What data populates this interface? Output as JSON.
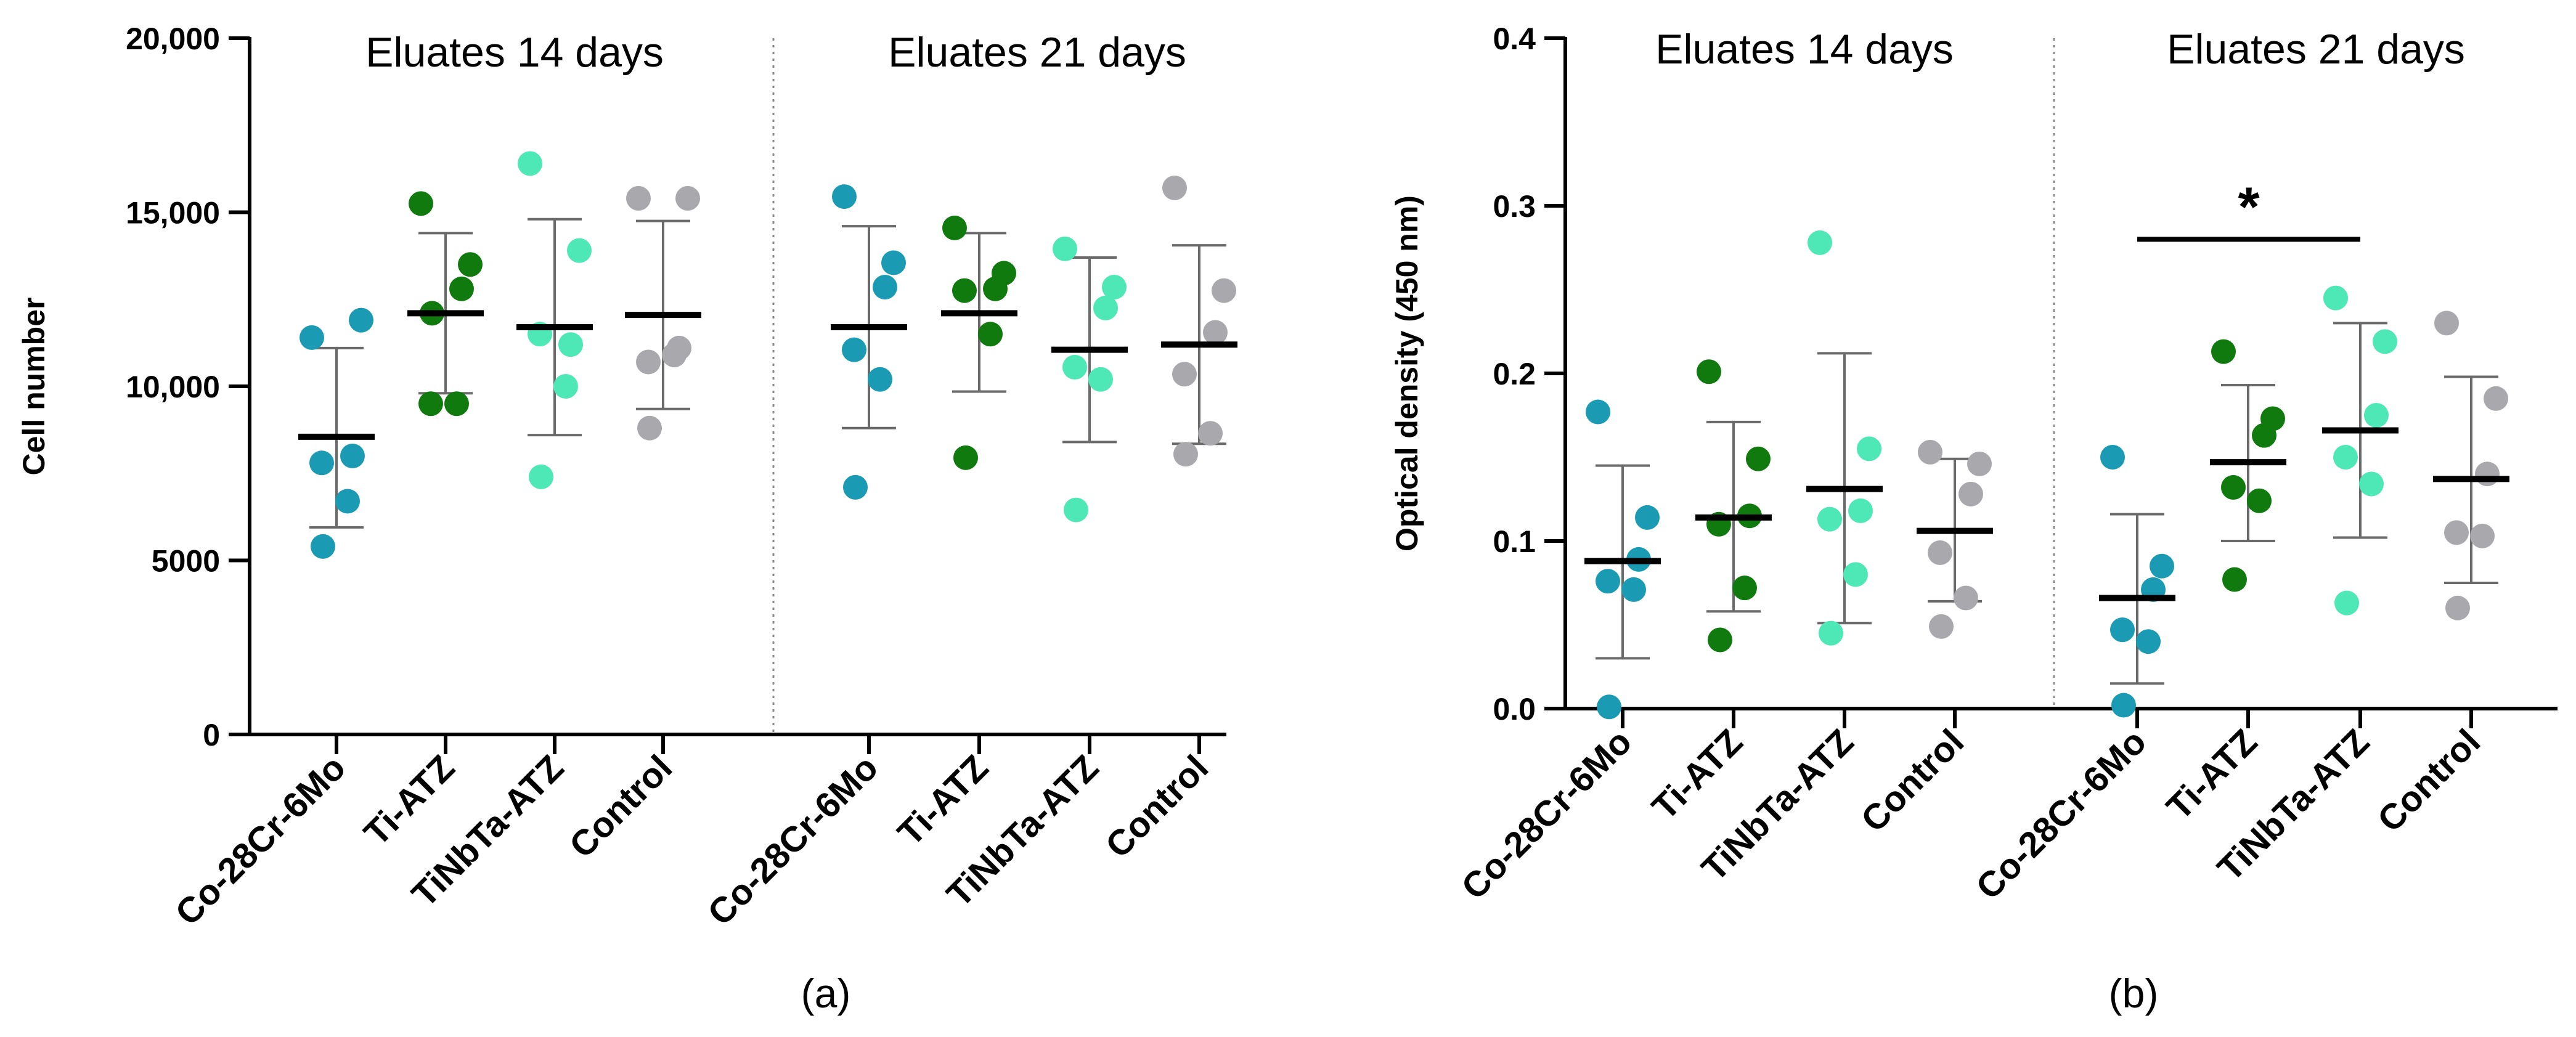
{
  "chart_data": [
    {
      "type": "scatter",
      "panel_label": "(a)",
      "ylabel": "Cell number",
      "ylim": [
        0,
        20000
      ],
      "yticks": [
        {
          "value": 0,
          "label": "0"
        },
        {
          "value": 5000,
          "label": "5000"
        },
        {
          "value": 10000,
          "label": "10,000"
        },
        {
          "value": 15000,
          "label": "15,000"
        },
        {
          "value": 20000,
          "label": "20,000"
        }
      ],
      "groups": [
        {
          "title": "Eluates 14 days",
          "categories": [
            {
              "name": "Co-28Cr-6Mo",
              "color": "#1a9bb3",
              "points": [
                11400,
                11900,
                8000,
                7800,
                6700,
                5400
              ],
              "mean": 8550,
              "sd": [
                5950,
                11100
              ]
            },
            {
              "name": "Ti-ATZ",
              "color": "#117a0f",
              "points": [
                15250,
                13500,
                12800,
                9500,
                9500,
                12100
              ],
              "mean": 12100,
              "sd": [
                9800,
                14400
              ]
            },
            {
              "name": "TiNbTa-ATZ",
              "color": "#4de8b5",
              "points": [
                16400,
                13900,
                11200,
                11500,
                10000,
                7400
              ],
              "mean": 11700,
              "sd": [
                8600,
                14800
              ]
            },
            {
              "name": "Control",
              "color": "#a9a9ad",
              "points": [
                15400,
                15400,
                11100,
                10700,
                10900,
                8800
              ],
              "mean": 12050,
              "sd": [
                9350,
                14750
              ]
            }
          ]
        },
        {
          "title": "Eluates 21 days",
          "categories": [
            {
              "name": "Co-28Cr-6Mo",
              "color": "#1a9bb3",
              "points": [
                15450,
                13550,
                12850,
                11050,
                10200,
                7100
              ],
              "mean": 11700,
              "sd": [
                8800,
                14600
              ]
            },
            {
              "name": "Ti-ATZ",
              "color": "#117a0f",
              "points": [
                14550,
                13250,
                12800,
                12750,
                11500,
                7950
              ],
              "mean": 12100,
              "sd": [
                9850,
                14400
              ]
            },
            {
              "name": "TiNbTa-ATZ",
              "color": "#4de8b5",
              "points": [
                13950,
                12850,
                12250,
                10550,
                10200,
                6450
              ],
              "mean": 11050,
              "sd": [
                8400,
                13700
              ]
            },
            {
              "name": "Control",
              "color": "#a9a9ad",
              "points": [
                15700,
                12750,
                11550,
                10350,
                8650,
                8050
              ],
              "mean": 11200,
              "sd": [
                8350,
                14050
              ]
            }
          ]
        }
      ]
    },
    {
      "type": "scatter",
      "panel_label": "(b)",
      "ylabel": "Optical density (450 nm)",
      "ylim": [
        0,
        0.4
      ],
      "yticks": [
        {
          "value": 0,
          "label": "0.0"
        },
        {
          "value": 0.1,
          "label": "0.1"
        },
        {
          "value": 0.2,
          "label": "0.2"
        },
        {
          "value": 0.3,
          "label": "0.3"
        },
        {
          "value": 0.4,
          "label": "0.4"
        }
      ],
      "groups": [
        {
          "title": "Eluates 14 days",
          "categories": [
            {
              "name": "Co-28Cr-6Mo",
              "color": "#1a9bb3",
              "points": [
                0.177,
                0.114,
                0.089,
                0.076,
                0.071,
                0.001
              ],
              "mean": 0.088,
              "sd": [
                0.03,
                0.145
              ]
            },
            {
              "name": "Ti-ATZ",
              "color": "#117a0f",
              "points": [
                0.201,
                0.149,
                0.115,
                0.11,
                0.072,
                0.041
              ],
              "mean": 0.114,
              "sd": [
                0.058,
                0.171
              ]
            },
            {
              "name": "TiNbTa-ATZ",
              "color": "#4de8b5",
              "points": [
                0.278,
                0.155,
                0.118,
                0.113,
                0.08,
                0.045
              ],
              "mean": 0.131,
              "sd": [
                0.051,
                0.212
              ]
            },
            {
              "name": "Control",
              "color": "#a9a9ad",
              "points": [
                0.153,
                0.146,
                0.128,
                0.093,
                0.066,
                0.049
              ],
              "mean": 0.106,
              "sd": [
                0.064,
                0.149
              ]
            }
          ]
        },
        {
          "title": "Eluates 21 days",
          "categories": [
            {
              "name": "Co-28Cr-6Mo",
              "color": "#1a9bb3",
              "points": [
                0.15,
                0.085,
                0.071,
                0.047,
                0.04,
                0.002
              ],
              "mean": 0.066,
              "sd": [
                0.015,
                0.116
              ]
            },
            {
              "name": "Ti-ATZ",
              "color": "#117a0f",
              "points": [
                0.213,
                0.173,
                0.163,
                0.132,
                0.124,
                0.077
              ],
              "mean": 0.147,
              "sd": [
                0.1,
                0.193
              ]
            },
            {
              "name": "TiNbTa-ATZ",
              "color": "#4de8b5",
              "points": [
                0.245,
                0.219,
                0.175,
                0.15,
                0.134,
                0.063
              ],
              "mean": 0.166,
              "sd": [
                0.102,
                0.23
              ]
            },
            {
              "name": "Control",
              "color": "#a9a9ad",
              "points": [
                0.23,
                0.185,
                0.14,
                0.105,
                0.103,
                0.06
              ],
              "mean": 0.137,
              "sd": [
                0.075,
                0.198
              ]
            }
          ]
        }
      ],
      "annotations": [
        {
          "text": "*",
          "from": {
            "group": 1,
            "category": "Co-28Cr-6Mo"
          },
          "to": {
            "group": 1,
            "category": "TiNbTa-ATZ"
          },
          "y": 0.28
        }
      ]
    }
  ]
}
